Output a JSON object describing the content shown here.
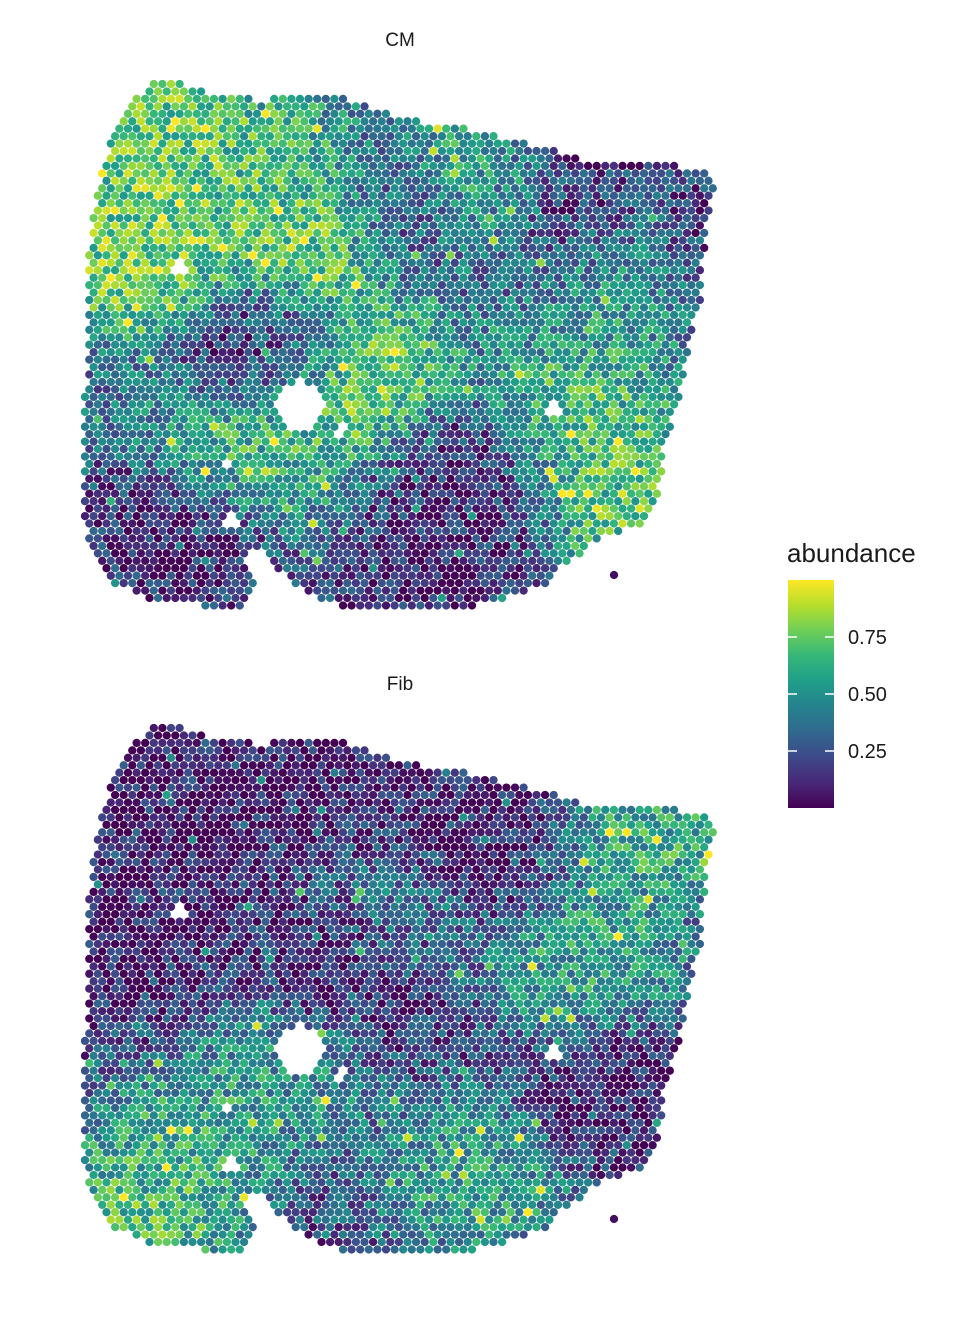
{
  "chart_data": {
    "type": "heatmap",
    "legend": {
      "title": "abundance",
      "ticks": [
        0.25,
        0.5,
        0.75
      ],
      "tick_labels": [
        "0.25",
        "0.50",
        "0.75"
      ],
      "range": [
        0,
        1
      ],
      "placement": "right"
    },
    "colormap": [
      "#440154",
      "#482878",
      "#3e4989",
      "#31688e",
      "#26828e",
      "#1f9e89",
      "#35b779",
      "#6ece58",
      "#b5de2b",
      "#fde725"
    ],
    "grid": false,
    "panels": [
      {
        "title": "CM",
        "summary": "Spatial spot map of CM abundance; high values (yellow) in a central vertical band and the upper-left region, low values (dark purple) in the lower-left and upper-right regions",
        "hotspots": [
          {
            "x": 0.38,
            "y": 0.3,
            "value": 0.92
          },
          {
            "x": 0.42,
            "y": 0.55,
            "value": 0.88
          },
          {
            "x": 0.1,
            "y": 0.32,
            "value": 0.85
          },
          {
            "x": 0.14,
            "y": 0.1,
            "value": 0.82
          },
          {
            "x": 0.62,
            "y": 0.2,
            "value": 0.75
          },
          {
            "x": 0.78,
            "y": 0.65,
            "value": 0.72
          },
          {
            "x": 0.88,
            "y": 0.8,
            "value": 0.78
          },
          {
            "x": 0.25,
            "y": 0.7,
            "value": 0.7
          },
          {
            "x": 0.88,
            "y": 0.35,
            "value": 0.65
          },
          {
            "x": 0.3,
            "y": 0.18,
            "value": 0.68
          }
        ],
        "coldspots": [
          {
            "x": 0.15,
            "y": 0.85,
            "value": 0.03
          },
          {
            "x": 0.55,
            "y": 0.95,
            "value": 0.04
          },
          {
            "x": 0.75,
            "y": 0.22,
            "value": 0.05
          },
          {
            "x": 0.95,
            "y": 0.3,
            "value": 0.05
          },
          {
            "x": 0.5,
            "y": 0.25,
            "value": 0.08
          },
          {
            "x": 0.3,
            "y": 0.5,
            "value": 0.06
          },
          {
            "x": 0.62,
            "y": 0.75,
            "value": 0.07
          }
        ]
      },
      {
        "title": "Fib",
        "summary": "Spatial spot map of Fib abundance; mostly low to moderate values, dark purple regions in the upper-left and center, moderate (teal-green) values toward the right and bottom",
        "hotspots": [
          {
            "x": 0.8,
            "y": 0.45,
            "value": 0.6
          },
          {
            "x": 0.9,
            "y": 0.2,
            "value": 0.65
          },
          {
            "x": 0.62,
            "y": 0.85,
            "value": 0.6
          },
          {
            "x": 0.15,
            "y": 0.8,
            "value": 0.62
          },
          {
            "x": 0.3,
            "y": 0.65,
            "value": 0.55
          },
          {
            "x": 0.5,
            "y": 0.35,
            "value": 0.45
          },
          {
            "x": 0.1,
            "y": 0.92,
            "value": 0.75
          }
        ],
        "coldspots": [
          {
            "x": 0.15,
            "y": 0.15,
            "value": 0.02
          },
          {
            "x": 0.1,
            "y": 0.4,
            "value": 0.03
          },
          {
            "x": 0.42,
            "y": 0.45,
            "value": 0.02
          },
          {
            "x": 0.4,
            "y": 0.1,
            "value": 0.04
          },
          {
            "x": 0.62,
            "y": 0.22,
            "value": 0.05
          },
          {
            "x": 0.85,
            "y": 0.7,
            "value": 0.05
          }
        ]
      }
    ]
  }
}
